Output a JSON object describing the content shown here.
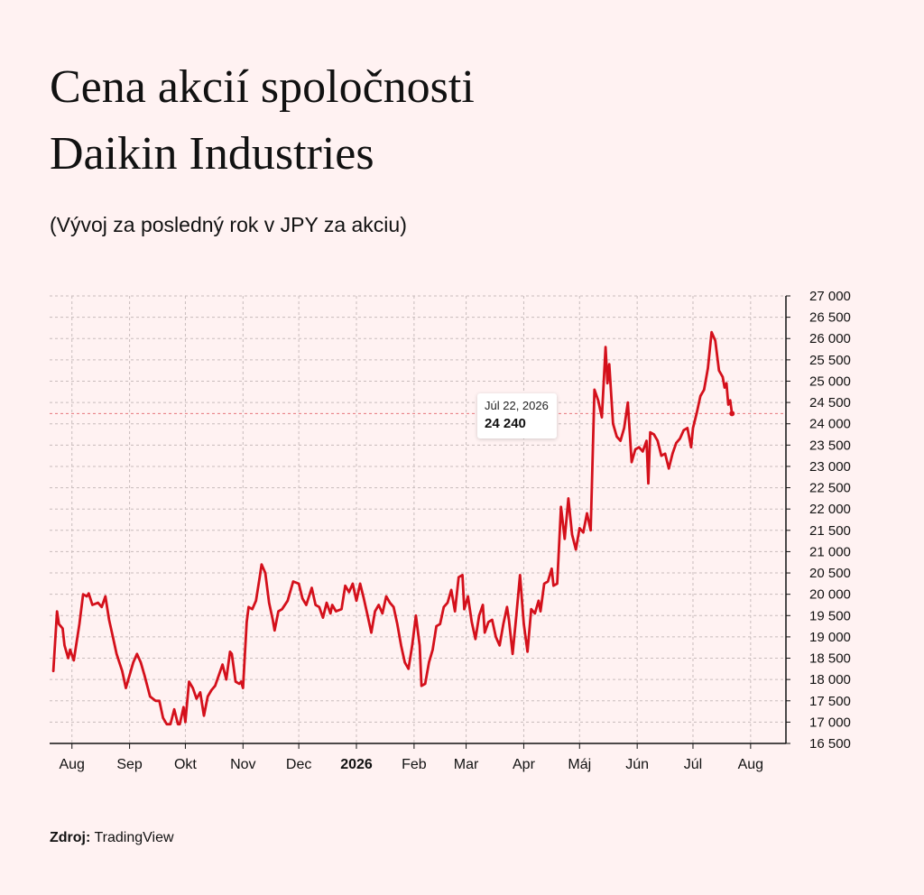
{
  "title_line1": "Cena akcií spoločnosti",
  "title_line2": "Daikin Industries",
  "subtitle": "(Vývoj za posledný rok v JPY za akciu)",
  "source_label": "Zdroj:",
  "source_value": "TradingView",
  "tooltip": {
    "date": "Júl 22, 2026",
    "value": "24 240"
  },
  "colors": {
    "background": "#fff2f2",
    "line": "#d4101b",
    "grid": "#c8bcbc",
    "axis": "#111111"
  },
  "chart_data": {
    "type": "line",
    "title": "",
    "xlabel": "",
    "ylabel": "",
    "ylim": [
      16500,
      27000
    ],
    "xlim": [
      "2025-07-20",
      "2026-08-20"
    ],
    "grid": true,
    "y_axis_position": "right",
    "y_ticks": [
      16500,
      17000,
      17500,
      18000,
      18500,
      19000,
      19500,
      20000,
      20500,
      21000,
      21500,
      22000,
      22500,
      23000,
      23500,
      24000,
      24500,
      25000,
      25500,
      26000,
      26500,
      27000
    ],
    "y_tick_labels": [
      "16 500",
      "17 000",
      "17 500",
      "18 000",
      "18 500",
      "19 000",
      "19 500",
      "20 000",
      "20 500",
      "21 000",
      "21 500",
      "22 000",
      "22 500",
      "23 000",
      "23 500",
      "24 000",
      "24 500",
      "25 000",
      "25 500",
      "26 000",
      "26 500",
      "27 000"
    ],
    "x_ticks": [
      {
        "date": "2025-08-01",
        "label": "Aug",
        "bold": false
      },
      {
        "date": "2025-09-01",
        "label": "Sep",
        "bold": false
      },
      {
        "date": "2025-10-01",
        "label": "Okt",
        "bold": false
      },
      {
        "date": "2025-11-01",
        "label": "Nov",
        "bold": false
      },
      {
        "date": "2025-12-01",
        "label": "Dec",
        "bold": false
      },
      {
        "date": "2026-01-01",
        "label": "2026",
        "bold": true
      },
      {
        "date": "2026-02-01",
        "label": "Feb",
        "bold": false
      },
      {
        "date": "2026-03-01",
        "label": "Mar",
        "bold": false
      },
      {
        "date": "2026-04-01",
        "label": "Apr",
        "bold": false
      },
      {
        "date": "2026-05-01",
        "label": "Máj",
        "bold": false
      },
      {
        "date": "2026-06-01",
        "label": "Jún",
        "bold": false
      },
      {
        "date": "2026-07-01",
        "label": "Júl",
        "bold": false
      },
      {
        "date": "2026-08-01",
        "label": "Aug",
        "bold": false
      }
    ],
    "series": [
      {
        "points": [
          [
            "2025-07-22",
            18200
          ],
          [
            "2025-07-24",
            19600
          ],
          [
            "2025-07-25",
            19300
          ],
          [
            "2025-07-27",
            19200
          ],
          [
            "2025-07-28",
            18800
          ],
          [
            "2025-07-30",
            18500
          ],
          [
            "2025-07-31",
            18700
          ],
          [
            "2025-08-02",
            18450
          ],
          [
            "2025-08-05",
            19300
          ],
          [
            "2025-08-07",
            20000
          ],
          [
            "2025-08-09",
            19950
          ],
          [
            "2025-08-10",
            20020
          ],
          [
            "2025-08-12",
            19750
          ],
          [
            "2025-08-15",
            19800
          ],
          [
            "2025-08-17",
            19700
          ],
          [
            "2025-08-19",
            19950
          ],
          [
            "2025-08-21",
            19400
          ],
          [
            "2025-08-23",
            19000
          ],
          [
            "2025-08-25",
            18600
          ],
          [
            "2025-08-28",
            18200
          ],
          [
            "2025-08-30",
            17800
          ],
          [
            "2025-09-01",
            18100
          ],
          [
            "2025-09-03",
            18400
          ],
          [
            "2025-09-05",
            18600
          ],
          [
            "2025-09-07",
            18400
          ],
          [
            "2025-09-09",
            18100
          ],
          [
            "2025-09-12",
            17600
          ],
          [
            "2025-09-15",
            17500
          ],
          [
            "2025-09-17",
            17500
          ],
          [
            "2025-09-19",
            17100
          ],
          [
            "2025-09-21",
            16950
          ],
          [
            "2025-09-23",
            16950
          ],
          [
            "2025-09-25",
            17300
          ],
          [
            "2025-09-27",
            16950
          ],
          [
            "2025-09-28",
            16950
          ],
          [
            "2025-09-30",
            17350
          ],
          [
            "2025-10-01",
            17000
          ],
          [
            "2025-10-03",
            17950
          ],
          [
            "2025-10-05",
            17800
          ],
          [
            "2025-10-07",
            17550
          ],
          [
            "2025-10-09",
            17700
          ],
          [
            "2025-10-11",
            17150
          ],
          [
            "2025-10-13",
            17600
          ],
          [
            "2025-10-15",
            17750
          ],
          [
            "2025-10-17",
            17850
          ],
          [
            "2025-10-19",
            18100
          ],
          [
            "2025-10-21",
            18350
          ],
          [
            "2025-10-23",
            18000
          ],
          [
            "2025-10-25",
            18650
          ],
          [
            "2025-10-26",
            18600
          ],
          [
            "2025-10-28",
            17950
          ],
          [
            "2025-10-30",
            17900
          ],
          [
            "2025-10-31",
            17950
          ],
          [
            "2025-11-01",
            17800
          ],
          [
            "2025-11-03",
            19350
          ],
          [
            "2025-11-04",
            19700
          ],
          [
            "2025-11-06",
            19650
          ],
          [
            "2025-11-08",
            19850
          ],
          [
            "2025-11-10",
            20400
          ],
          [
            "2025-11-11",
            20700
          ],
          [
            "2025-11-13",
            20500
          ],
          [
            "2025-11-15",
            19800
          ],
          [
            "2025-11-17",
            19400
          ],
          [
            "2025-11-18",
            19150
          ],
          [
            "2025-11-20",
            19600
          ],
          [
            "2025-11-22",
            19650
          ],
          [
            "2025-11-25",
            19850
          ],
          [
            "2025-11-28",
            20300
          ],
          [
            "2025-12-01",
            20250
          ],
          [
            "2025-12-03",
            19900
          ],
          [
            "2025-12-05",
            19750
          ],
          [
            "2025-12-08",
            20150
          ],
          [
            "2025-12-10",
            19750
          ],
          [
            "2025-12-12",
            19700
          ],
          [
            "2025-12-14",
            19450
          ],
          [
            "2025-12-16",
            19800
          ],
          [
            "2025-12-18",
            19550
          ],
          [
            "2025-12-19",
            19750
          ],
          [
            "2025-12-21",
            19600
          ],
          [
            "2025-12-24",
            19650
          ],
          [
            "2025-12-26",
            20200
          ],
          [
            "2025-12-28",
            20050
          ],
          [
            "2025-12-30",
            20250
          ],
          [
            "2026-01-01",
            19850
          ],
          [
            "2026-01-03",
            20250
          ],
          [
            "2026-01-05",
            19900
          ],
          [
            "2026-01-07",
            19500
          ],
          [
            "2026-01-09",
            19100
          ],
          [
            "2026-01-11",
            19600
          ],
          [
            "2026-01-13",
            19750
          ],
          [
            "2026-01-15",
            19550
          ],
          [
            "2026-01-17",
            19950
          ],
          [
            "2026-01-19",
            19800
          ],
          [
            "2026-01-21",
            19700
          ],
          [
            "2026-01-23",
            19300
          ],
          [
            "2026-01-25",
            18800
          ],
          [
            "2026-01-27",
            18400
          ],
          [
            "2026-01-29",
            18250
          ],
          [
            "2026-01-31",
            18800
          ],
          [
            "2026-02-02",
            19500
          ],
          [
            "2026-02-04",
            18800
          ],
          [
            "2026-02-05",
            17850
          ],
          [
            "2026-02-07",
            17900
          ],
          [
            "2026-02-09",
            18400
          ],
          [
            "2026-02-11",
            18700
          ],
          [
            "2026-02-13",
            19250
          ],
          [
            "2026-02-15",
            19300
          ],
          [
            "2026-02-17",
            19700
          ],
          [
            "2026-02-19",
            19800
          ],
          [
            "2026-02-21",
            20100
          ],
          [
            "2026-02-23",
            19600
          ],
          [
            "2026-02-25",
            20400
          ],
          [
            "2026-02-27",
            20450
          ],
          [
            "2026-02-28",
            19650
          ],
          [
            "2026-03-02",
            19950
          ],
          [
            "2026-03-04",
            19350
          ],
          [
            "2026-03-06",
            18950
          ],
          [
            "2026-03-08",
            19500
          ],
          [
            "2026-03-10",
            19750
          ],
          [
            "2026-03-11",
            19100
          ],
          [
            "2026-03-13",
            19350
          ],
          [
            "2026-03-15",
            19400
          ],
          [
            "2026-03-17",
            19000
          ],
          [
            "2026-03-19",
            18800
          ],
          [
            "2026-03-21",
            19300
          ],
          [
            "2026-03-23",
            19700
          ],
          [
            "2026-03-24",
            19400
          ],
          [
            "2026-03-26",
            18600
          ],
          [
            "2026-03-28",
            19500
          ],
          [
            "2026-03-30",
            20450
          ],
          [
            "2026-04-01",
            19300
          ],
          [
            "2026-04-03",
            18650
          ],
          [
            "2026-04-05",
            19650
          ],
          [
            "2026-04-07",
            19550
          ],
          [
            "2026-04-09",
            19850
          ],
          [
            "2026-04-10",
            19600
          ],
          [
            "2026-04-12",
            20250
          ],
          [
            "2026-04-14",
            20300
          ],
          [
            "2026-04-16",
            20600
          ],
          [
            "2026-04-17",
            20200
          ],
          [
            "2026-04-19",
            20250
          ],
          [
            "2026-04-21",
            22050
          ],
          [
            "2026-04-23",
            21300
          ],
          [
            "2026-04-25",
            22250
          ],
          [
            "2026-04-27",
            21400
          ],
          [
            "2026-04-29",
            21050
          ],
          [
            "2026-05-01",
            21550
          ],
          [
            "2026-05-03",
            21450
          ],
          [
            "2026-05-05",
            21900
          ],
          [
            "2026-05-07",
            21500
          ],
          [
            "2026-05-09",
            24800
          ],
          [
            "2026-05-11",
            24550
          ],
          [
            "2026-05-13",
            24150
          ],
          [
            "2026-05-15",
            25800
          ],
          [
            "2026-05-16",
            24950
          ],
          [
            "2026-05-17",
            25400
          ],
          [
            "2026-05-19",
            24000
          ],
          [
            "2026-05-21",
            23700
          ],
          [
            "2026-05-23",
            23600
          ],
          [
            "2026-05-25",
            23900
          ],
          [
            "2026-05-27",
            24500
          ],
          [
            "2026-05-29",
            23100
          ],
          [
            "2026-05-31",
            23400
          ],
          [
            "2026-06-02",
            23450
          ],
          [
            "2026-06-04",
            23350
          ],
          [
            "2026-06-06",
            23600
          ],
          [
            "2026-06-07",
            22600
          ],
          [
            "2026-06-08",
            23800
          ],
          [
            "2026-06-10",
            23750
          ],
          [
            "2026-06-12",
            23600
          ],
          [
            "2026-06-14",
            23250
          ],
          [
            "2026-06-16",
            23300
          ],
          [
            "2026-06-18",
            22950
          ],
          [
            "2026-06-20",
            23300
          ],
          [
            "2026-06-22",
            23550
          ],
          [
            "2026-06-24",
            23650
          ],
          [
            "2026-06-26",
            23850
          ],
          [
            "2026-06-28",
            23900
          ],
          [
            "2026-06-30",
            23450
          ],
          [
            "2026-07-01",
            23900
          ],
          [
            "2026-07-03",
            24250
          ],
          [
            "2026-07-05",
            24650
          ],
          [
            "2026-07-07",
            24800
          ],
          [
            "2026-07-09",
            25300
          ],
          [
            "2026-07-11",
            26150
          ],
          [
            "2026-07-13",
            25950
          ],
          [
            "2026-07-15",
            25250
          ],
          [
            "2026-07-17",
            25100
          ],
          [
            "2026-07-18",
            24850
          ],
          [
            "2026-07-19",
            24950
          ],
          [
            "2026-07-20",
            24450
          ],
          [
            "2026-07-21",
            24550
          ],
          [
            "2026-07-22",
            24240
          ]
        ]
      }
    ],
    "highlight": {
      "date": "2026-07-22",
      "value": 24240
    }
  }
}
